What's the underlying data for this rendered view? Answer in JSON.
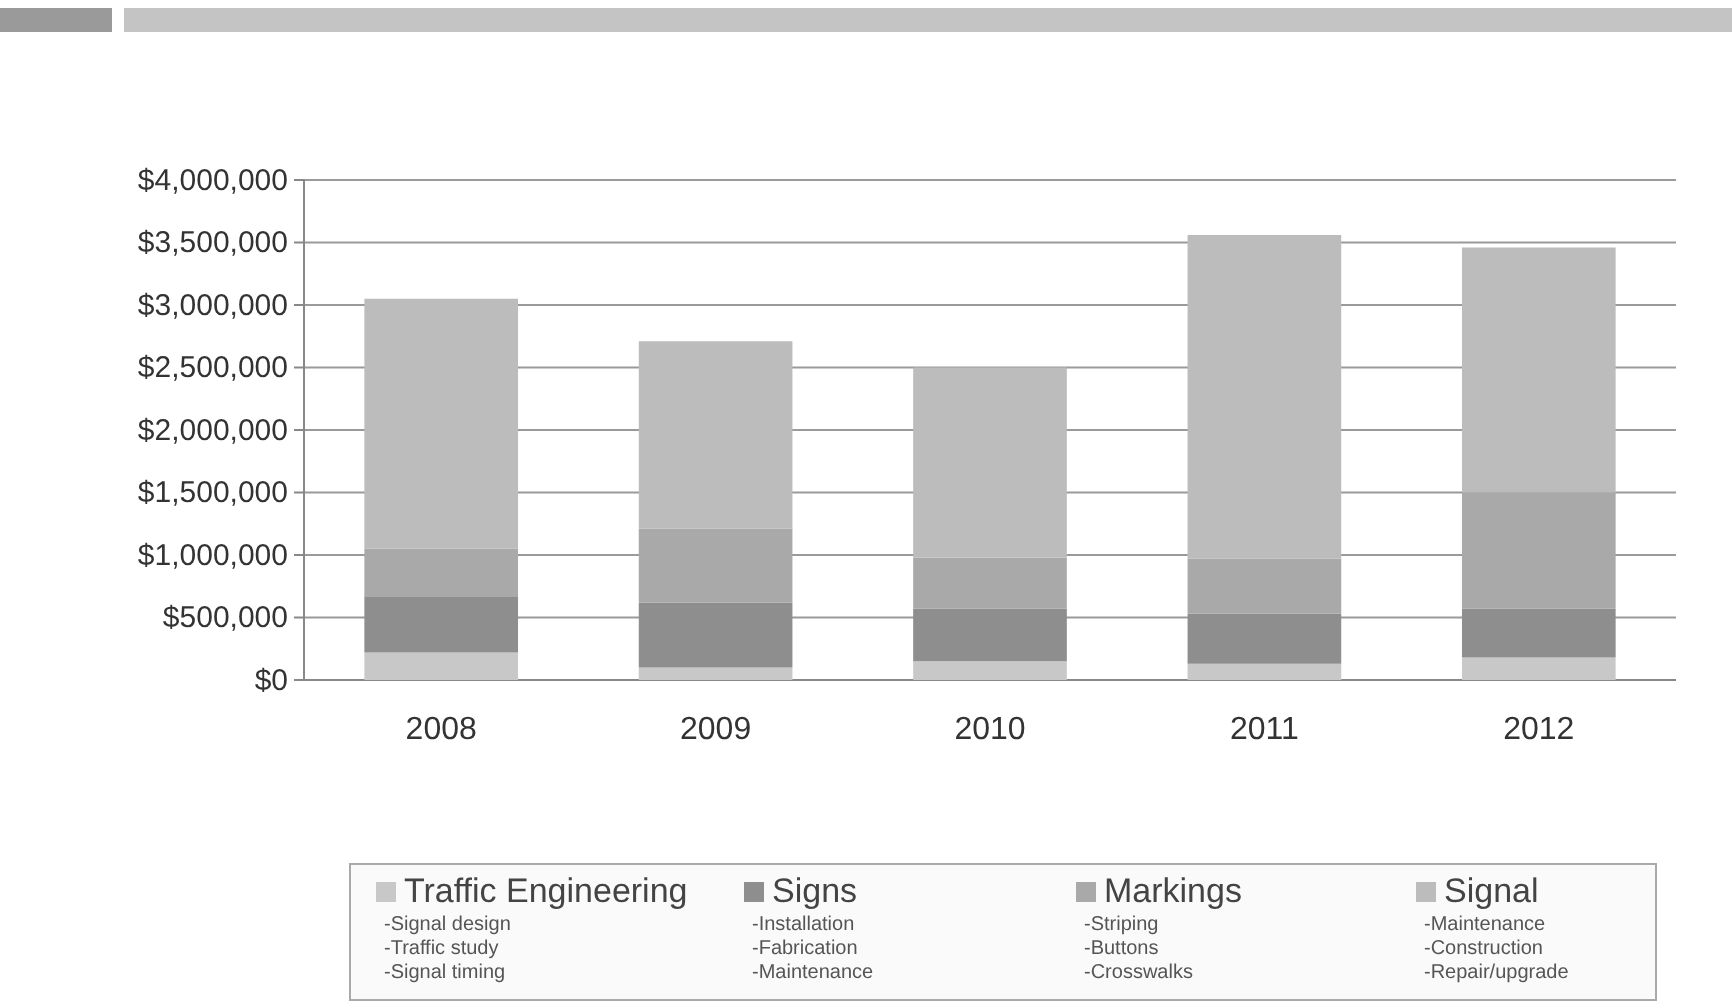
{
  "chart_data": {
    "type": "bar",
    "stacked": true,
    "categories": [
      "2008",
      "2009",
      "2010",
      "2011",
      "2012"
    ],
    "series": [
      {
        "name": "Traffic Engineering",
        "color": "#c8c8c8",
        "values": [
          220000,
          100000,
          150000,
          130000,
          180000
        ]
      },
      {
        "name": "Signs",
        "color": "#8e8e8e",
        "values": [
          450000,
          520000,
          420000,
          400000,
          390000
        ]
      },
      {
        "name": "Markings",
        "color": "#a9a9a9",
        "values": [
          380000,
          590000,
          410000,
          440000,
          930000
        ]
      },
      {
        "name": "Signal",
        "color": "#bcbcbc",
        "values": [
          2000000,
          1500000,
          1520000,
          2590000,
          1960000
        ]
      }
    ],
    "ylim": [
      0,
      4000000
    ],
    "yticks": [
      {
        "value": 0,
        "label": "$0"
      },
      {
        "value": 500000,
        "label": "$500,000"
      },
      {
        "value": 1000000,
        "label": "$1,000,000"
      },
      {
        "value": 1500000,
        "label": "$1,500,000"
      },
      {
        "value": 2000000,
        "label": "$2,000,000"
      },
      {
        "value": 2500000,
        "label": "$2,500,000"
      },
      {
        "value": 3000000,
        "label": "$3,000,000"
      },
      {
        "value": 3500000,
        "label": "$3,500,000"
      },
      {
        "value": 4000000,
        "label": "$4,000,000"
      }
    ],
    "grid": "y",
    "legend": "bottom",
    "annotations": [
      "-Signal design",
      "-Traffic study",
      "-Signal timing",
      "-Installation",
      "-Fabrication",
      "-Maintenance",
      "-Striping",
      "-Buttons",
      "-Crosswalks",
      "-Maintenance",
      "-Construction",
      "-Repair/upgrade"
    ]
  }
}
